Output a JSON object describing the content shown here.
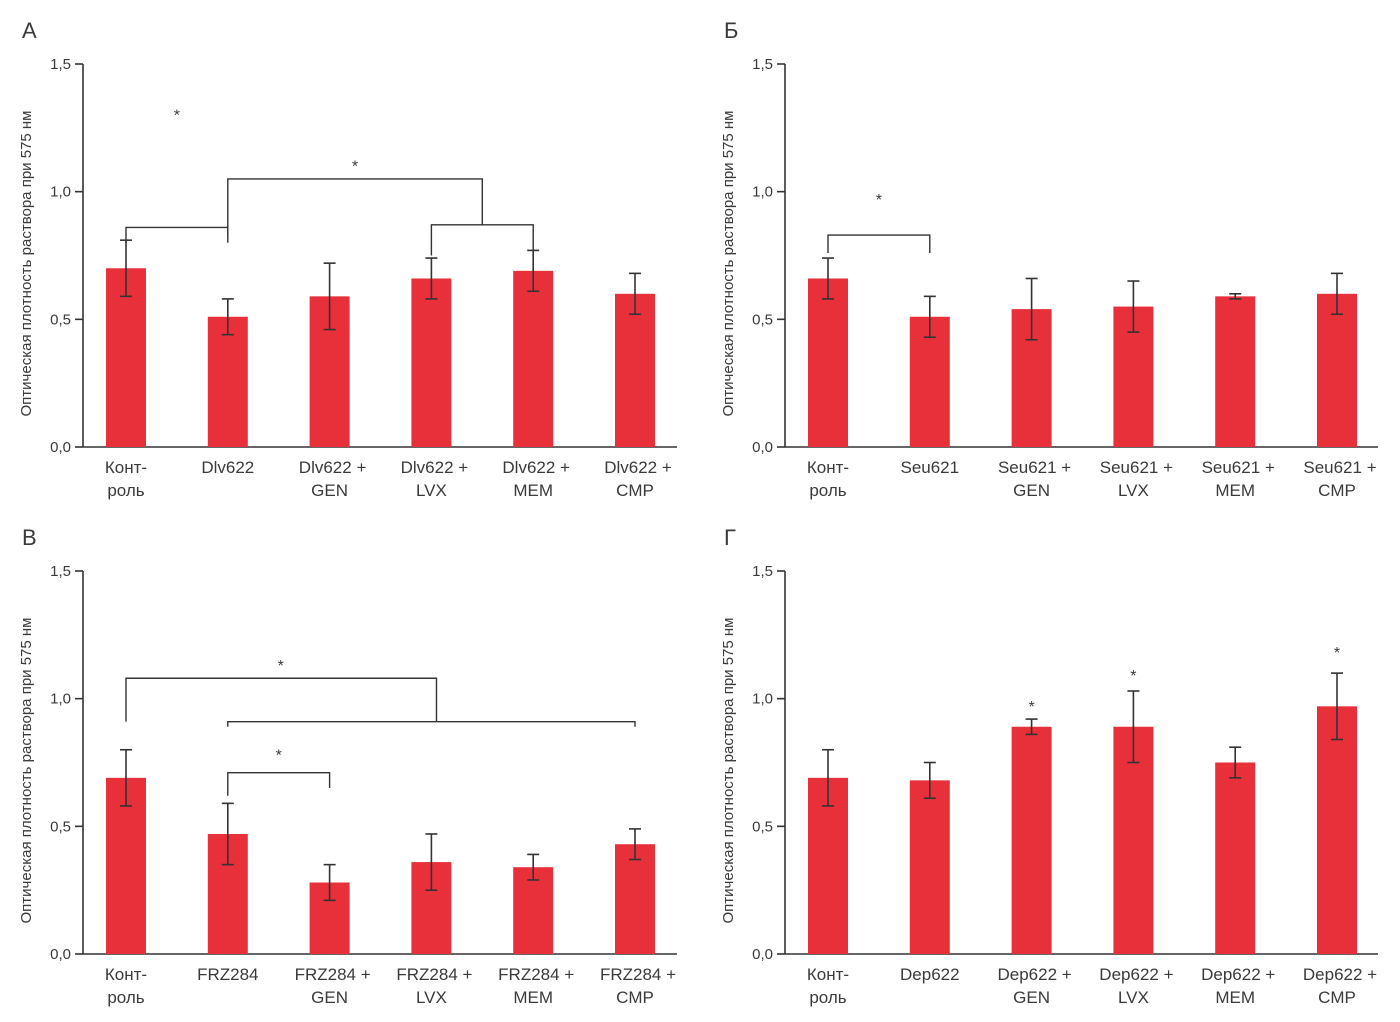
{
  "figure": {
    "ylabel": "Оптическая плотность раствора при 575 нм",
    "bar_color": "#e8303a",
    "axis_color": "#333333"
  },
  "chart_data": [
    {
      "type": "bar",
      "panel": "А",
      "ylabel": "Оптическая плотность раствора при 575 нм",
      "ylim": [
        0,
        1.5
      ],
      "yticks": [
        "0,0",
        "0,5",
        "1,0",
        "1,5"
      ],
      "categories": [
        [
          "Конт-",
          "роль"
        ],
        [
          "Dlv622"
        ],
        [
          "Dlv622 +",
          "GEN"
        ],
        [
          "Dlv622 +",
          "LVX"
        ],
        [
          "Dlv622 +",
          "MEM"
        ],
        [
          "Dlv622 +",
          "CMP"
        ]
      ],
      "values": [
        0.7,
        0.51,
        0.59,
        0.66,
        0.69,
        0.6
      ],
      "errors": [
        0.11,
        0.07,
        0.13,
        0.08,
        0.08,
        0.08
      ],
      "brackets": [
        {
          "from": 0,
          "to": 1,
          "drop_from": 0.8,
          "drop_to": 0.8,
          "top": 0.86,
          "label": "*",
          "label_y": 1.31
        },
        {
          "from": 3,
          "to": 4,
          "drop_from": 0.75,
          "drop_to": 0.75,
          "top": 0.87
        },
        {
          "from": 1,
          "to": 3.5,
          "drop_from": 0.83,
          "drop_to": 0.87,
          "top": 1.05,
          "label": "*",
          "label_y": 1.11,
          "label_at": 2.25
        }
      ],
      "stars": []
    },
    {
      "type": "bar",
      "panel": "Б",
      "ylabel": "Оптическая плотность раствора при 575 нм",
      "ylim": [
        0,
        1.5
      ],
      "yticks": [
        "0,0",
        "0,5",
        "1,0",
        "1,5"
      ],
      "categories": [
        [
          "Конт-",
          "роль"
        ],
        [
          "Seu621"
        ],
        [
          "Seu621 +",
          "GEN"
        ],
        [
          "Seu621 +",
          "LVX"
        ],
        [
          "Seu621 +",
          "MEM"
        ],
        [
          "Seu621 +",
          "CMP"
        ]
      ],
      "values": [
        0.66,
        0.51,
        0.54,
        0.55,
        0.59,
        0.6
      ],
      "errors": [
        0.08,
        0.08,
        0.12,
        0.1,
        0.01,
        0.08
      ],
      "brackets": [
        {
          "from": 0,
          "to": 1,
          "drop_from": 0.76,
          "drop_to": 0.76,
          "top": 0.83,
          "label": "*",
          "label_y": 0.98
        }
      ],
      "stars": []
    },
    {
      "type": "bar",
      "panel": "В",
      "ylabel": "Оптическая плотность раствора при 575 нм",
      "ylim": [
        0,
        1.5
      ],
      "yticks": [
        "0,0",
        "0,5",
        "1,0",
        "1,5"
      ],
      "categories": [
        [
          "Конт-",
          "роль"
        ],
        [
          "FRZ284"
        ],
        [
          "FRZ284 +",
          "GEN"
        ],
        [
          "FRZ284 +",
          "LVX"
        ],
        [
          "FRZ284 +",
          "MEM"
        ],
        [
          "FRZ284 +",
          "CMP"
        ]
      ],
      "values": [
        0.69,
        0.47,
        0.28,
        0.36,
        0.34,
        0.43
      ],
      "errors": [
        0.11,
        0.12,
        0.07,
        0.11,
        0.05,
        0.06
      ],
      "brackets": [
        {
          "from": 0,
          "to": 3.05,
          "drop_from": 0.91,
          "drop_to": 0.91,
          "top": 1.08,
          "label": "*",
          "label_y": 1.14,
          "label_at": 1.52
        },
        {
          "from": 1,
          "to": 5,
          "drop_from": 0.89,
          "drop_to": 0.89,
          "top": 0.91
        },
        {
          "from": 1,
          "to": 2,
          "drop_from": 0.62,
          "drop_to": 0.65,
          "top": 0.71,
          "label": "*",
          "label_y": 0.79
        }
      ],
      "stars": []
    },
    {
      "type": "bar",
      "panel": "Г",
      "ylabel": "Оптическая плотность раствора при 575 нм",
      "ylim": [
        0,
        1.5
      ],
      "yticks": [
        "0,0",
        "0,5",
        "1,0",
        "1,5"
      ],
      "categories": [
        [
          "Конт-",
          "роль"
        ],
        [
          "Dep622"
        ],
        [
          "Dep622 +",
          "GEN"
        ],
        [
          "Dep622 +",
          "LVX"
        ],
        [
          "Dep622 +",
          "MEM"
        ],
        [
          "Dep622 +",
          "CMP"
        ]
      ],
      "values": [
        0.69,
        0.68,
        0.89,
        0.89,
        0.75,
        0.97
      ],
      "errors": [
        0.11,
        0.07,
        0.03,
        0.14,
        0.06,
        0.13
      ],
      "brackets": [],
      "stars": [
        {
          "index": 2,
          "y": 0.98,
          "label": "*"
        },
        {
          "index": 3,
          "y": 1.1,
          "label": "*"
        },
        {
          "index": 5,
          "y": 1.19,
          "label": "*"
        }
      ]
    }
  ]
}
